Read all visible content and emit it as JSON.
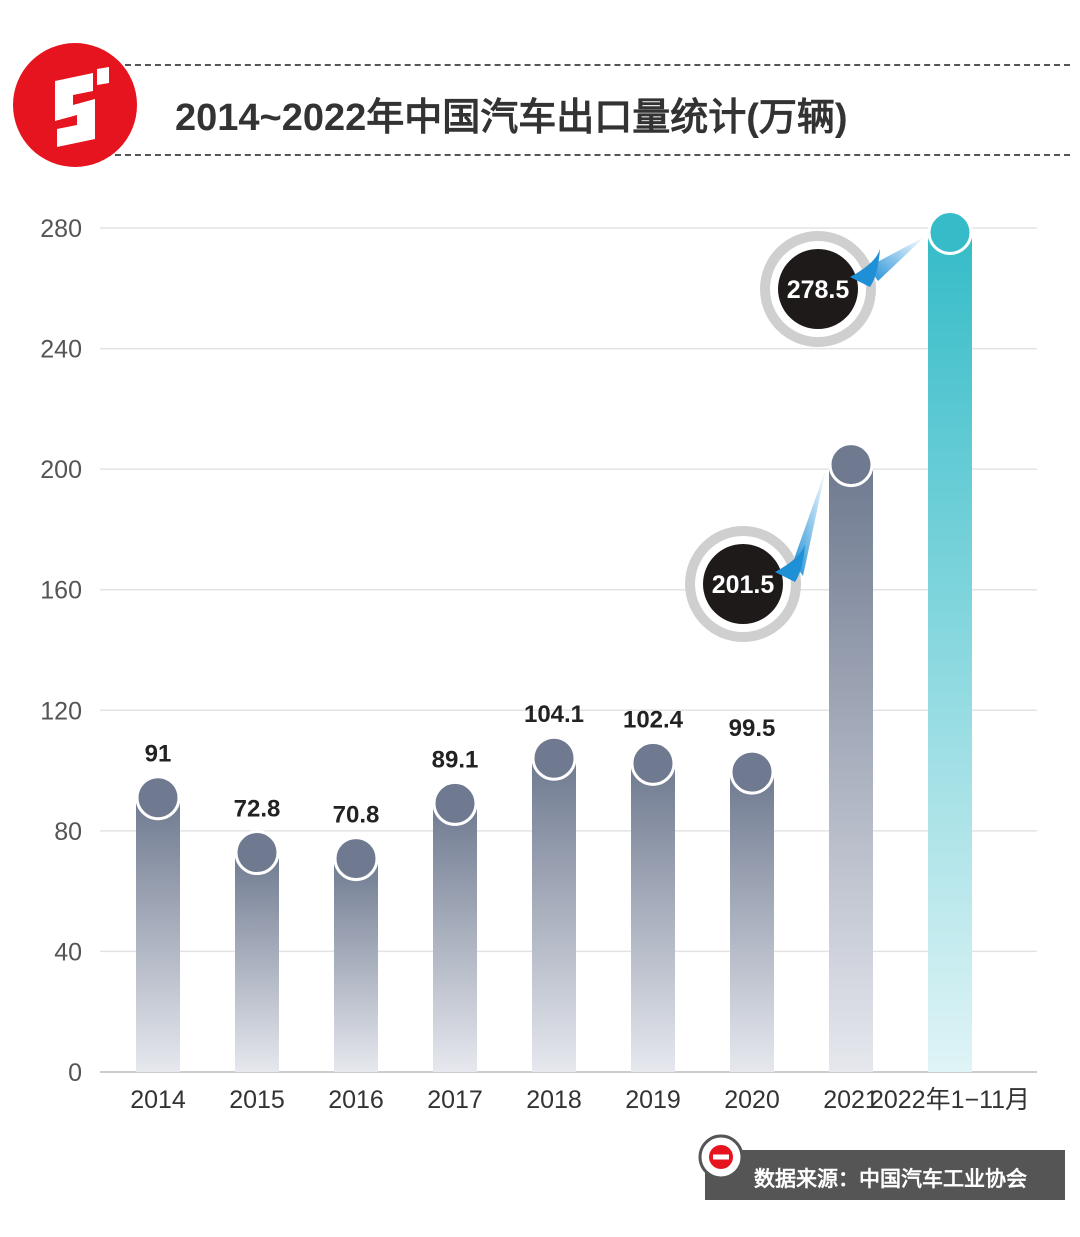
{
  "header": {
    "title": "2014~2022年中国汽车出口量统计(万辆)"
  },
  "footer": {
    "source": "数据来源：中国汽车工业协会"
  },
  "colors": {
    "bar_gray_top": "#6f7a90",
    "bar_gray_bottom": "#e6e8ee",
    "bar_teal_top": "#35bcc8",
    "bar_teal_bottom": "#dff4f6",
    "cap_gray": "#6f7a90",
    "cap_teal": "#35bcc8",
    "callout_dark": "#1e1a19",
    "callout_ring": "#cfcfcf",
    "accent_blue": "#1f8fd6",
    "brand_red": "#e6141e",
    "grid": "#e3e3e3",
    "axis_text": "#555555"
  },
  "chart_data": {
    "type": "bar",
    "categories": [
      "2014",
      "2015",
      "2016",
      "2017",
      "2018",
      "2019",
      "2020",
      "2021",
      "2022年1−11月"
    ],
    "values": [
      91,
      72.8,
      70.8,
      89.1,
      104.1,
      102.4,
      99.5,
      201.5,
      278.5
    ],
    "data_labels": [
      "91",
      "72.8",
      "70.8",
      "89.1",
      "104.1",
      "102.4",
      "99.5",
      "201.5",
      "278.5"
    ],
    "highlight": [
      false,
      false,
      false,
      false,
      false,
      false,
      false,
      true,
      true
    ],
    "yticks": [
      "0",
      "40",
      "80",
      "120",
      "160",
      "200",
      "240",
      "280"
    ],
    "ylim": [
      0,
      280
    ],
    "grid": true,
    "title": "2014~2022年中国汽车出口量统计(万辆)",
    "xlabel": "",
    "ylabel": ""
  }
}
